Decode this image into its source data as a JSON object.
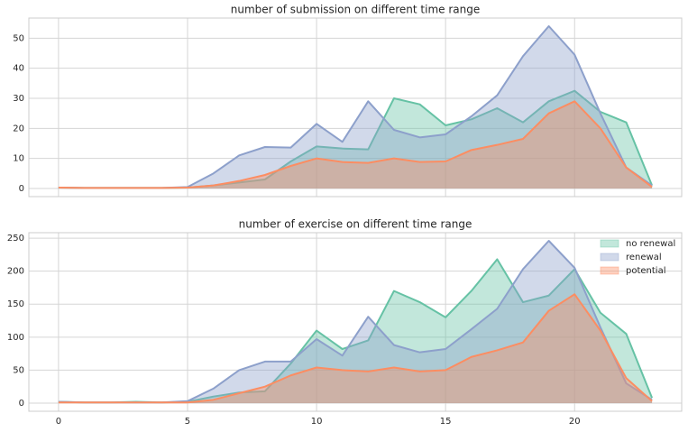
{
  "chart_data": [
    {
      "type": "area",
      "title": "number of submission on different time range",
      "x": [
        0,
        1,
        2,
        3,
        4,
        5,
        6,
        7,
        8,
        9,
        10,
        11,
        12,
        13,
        14,
        15,
        16,
        17,
        18,
        19,
        20,
        21,
        22,
        23
      ],
      "series": [
        {
          "name": "no renewal",
          "color": "#66c2a5",
          "values": [
            0.3,
            0.2,
            0.2,
            0.2,
            0.2,
            0.3,
            1,
            2,
            3,
            9,
            14,
            13.3,
            13,
            30,
            28,
            21,
            23,
            26.7,
            22,
            29,
            32.5,
            25.5,
            22,
            1
          ]
        },
        {
          "name": "renewal",
          "color": "#8da0cb",
          "values": [
            0.3,
            0.2,
            0.2,
            0.2,
            0.2,
            0.5,
            5,
            11,
            13.8,
            13.6,
            21.5,
            15.5,
            29,
            19.5,
            17,
            18,
            24,
            31,
            44,
            54,
            44.5,
            25,
            7,
            1
          ]
        },
        {
          "name": "potential",
          "color": "#fc8d62",
          "values": [
            0.3,
            0.2,
            0.2,
            0.2,
            0.2,
            0.3,
            1,
            2.5,
            4.5,
            7.5,
            10,
            8.8,
            8.5,
            10,
            8.8,
            9,
            12.8,
            14.5,
            16.5,
            25,
            29,
            20,
            7,
            0.5
          ]
        }
      ],
      "xlim": [
        -1.15,
        24.15
      ],
      "ylim": [
        -2.7,
        56.7
      ],
      "yticks": [
        0,
        10,
        20,
        30,
        40,
        50
      ],
      "grid": true
    },
    {
      "type": "area",
      "title": "number of exercise on different time range",
      "x": [
        0,
        1,
        2,
        3,
        4,
        5,
        6,
        7,
        8,
        9,
        10,
        11,
        12,
        13,
        14,
        15,
        16,
        17,
        18,
        19,
        20,
        21,
        22,
        23
      ],
      "series": [
        {
          "name": "no renewal",
          "color": "#66c2a5",
          "values": [
            2,
            1,
            1,
            2,
            1,
            2,
            10,
            16,
            18,
            60,
            110,
            82,
            95,
            170,
            153,
            130,
            170,
            218,
            153,
            163,
            203,
            137,
            105,
            8
          ]
        },
        {
          "name": "renewal",
          "color": "#8da0cb",
          "values": [
            2,
            1,
            1,
            1,
            1,
            3,
            22,
            50,
            63,
            63,
            97,
            72,
            131,
            88,
            77,
            82,
            112,
            143,
            203,
            246,
            205,
            115,
            30,
            5
          ]
        },
        {
          "name": "potential",
          "color": "#fc8d62",
          "values": [
            1,
            1,
            1,
            1,
            1,
            1,
            5,
            15,
            25,
            42,
            54,
            50,
            48,
            54,
            48,
            50,
            70,
            80,
            92,
            140,
            165,
            110,
            38,
            3
          ]
        }
      ],
      "xlim": [
        -1.15,
        24.15
      ],
      "xticks": [
        0,
        5,
        10,
        15,
        20
      ],
      "ylim": [
        -12.3,
        258.3
      ],
      "yticks": [
        0,
        50,
        100,
        150,
        200,
        250
      ],
      "grid": true,
      "legend": "upper right"
    }
  ]
}
